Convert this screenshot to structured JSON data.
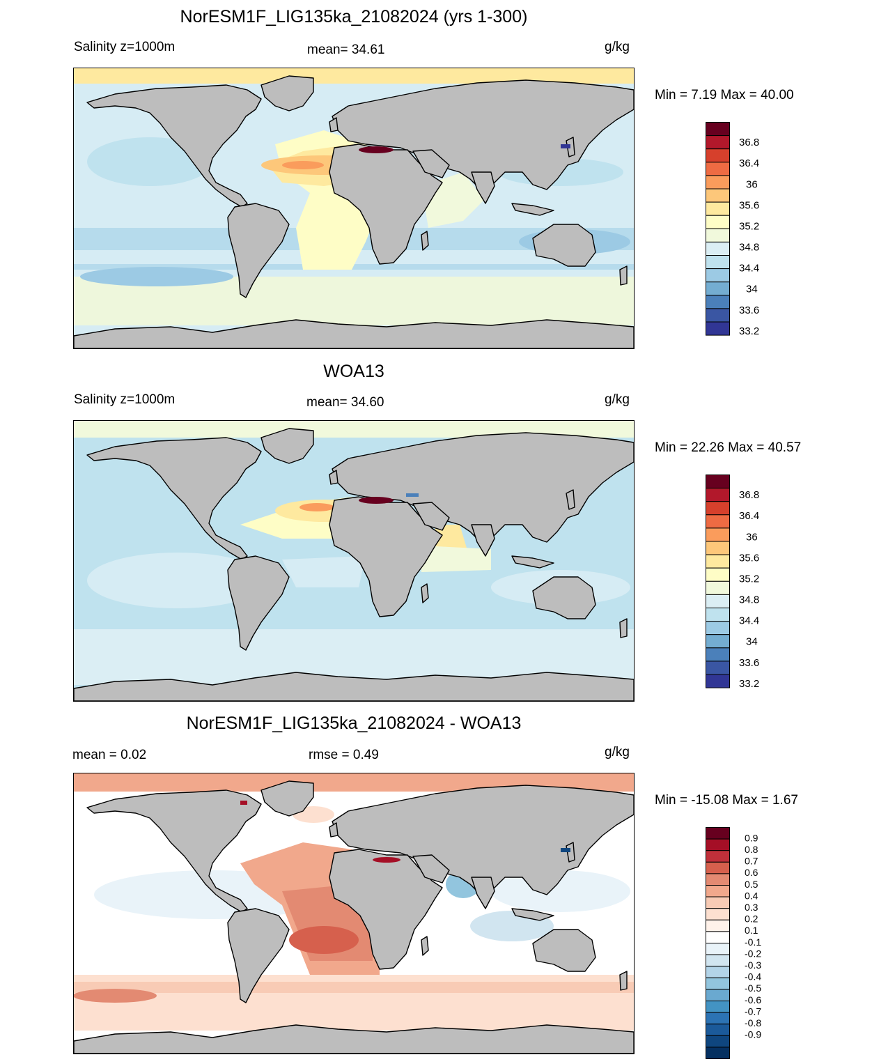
{
  "panels": [
    {
      "title": "NorESM1F_LIG135ka_21082024 (yrs 1-300)",
      "left_label": "Salinity z=1000m",
      "center_label": "mean=  34.61",
      "right_label": "g/kg",
      "minmax": "Min =   7.19 Max =  40.00"
    },
    {
      "title": "WOA13",
      "left_label": "Salinity z=1000m",
      "center_label": "mean=  34.60",
      "right_label": "g/kg",
      "minmax": "Min =  22.26 Max =  40.57"
    },
    {
      "title": "NorESM1F_LIG135ka_21082024 - WOA13",
      "left_label": "mean =    0.02",
      "center_label": "rmse =   0.49",
      "right_label": "g/kg",
      "minmax": "Min = -15.08 Max =   1.67"
    }
  ],
  "colorbars": {
    "salinity": {
      "colors": [
        "#67001f",
        "#b2182b",
        "#d6402c",
        "#ee6b43",
        "#fa9c5c",
        "#fdc77a",
        "#fee99f",
        "#fefdc6",
        "#f1f9dc",
        "#dbeef4",
        "#bfe2ee",
        "#9ccae4",
        "#74add1",
        "#4b80ba",
        "#3a56a3",
        "#313695"
      ],
      "labels": [
        "36.8",
        "36.4",
        "36",
        "35.6",
        "35.2",
        "34.8",
        "34.4",
        "34",
        "33.6",
        "33.2"
      ]
    },
    "difference": {
      "colors": [
        "#67001f",
        "#a50f26",
        "#c0303a",
        "#d6604d",
        "#e38a72",
        "#f1a88c",
        "#f8cbb5",
        "#fde0d0",
        "#fff2ea",
        "#ffffff",
        "#e9f3f9",
        "#d1e5f0",
        "#b3d4e8",
        "#92c5de",
        "#6aa9d0",
        "#4393c3",
        "#2c73b4",
        "#1b5a9a",
        "#0f467f",
        "#053061"
      ],
      "labels": [
        "0.9",
        "0.8",
        "0.7",
        "0.6",
        "0.5",
        "0.4",
        "0.3",
        "0.2",
        "0.1",
        "-0.1",
        "-0.2",
        "-0.3",
        "-0.4",
        "-0.5",
        "-0.6",
        "-0.7",
        "-0.8",
        "-0.9"
      ]
    }
  }
}
